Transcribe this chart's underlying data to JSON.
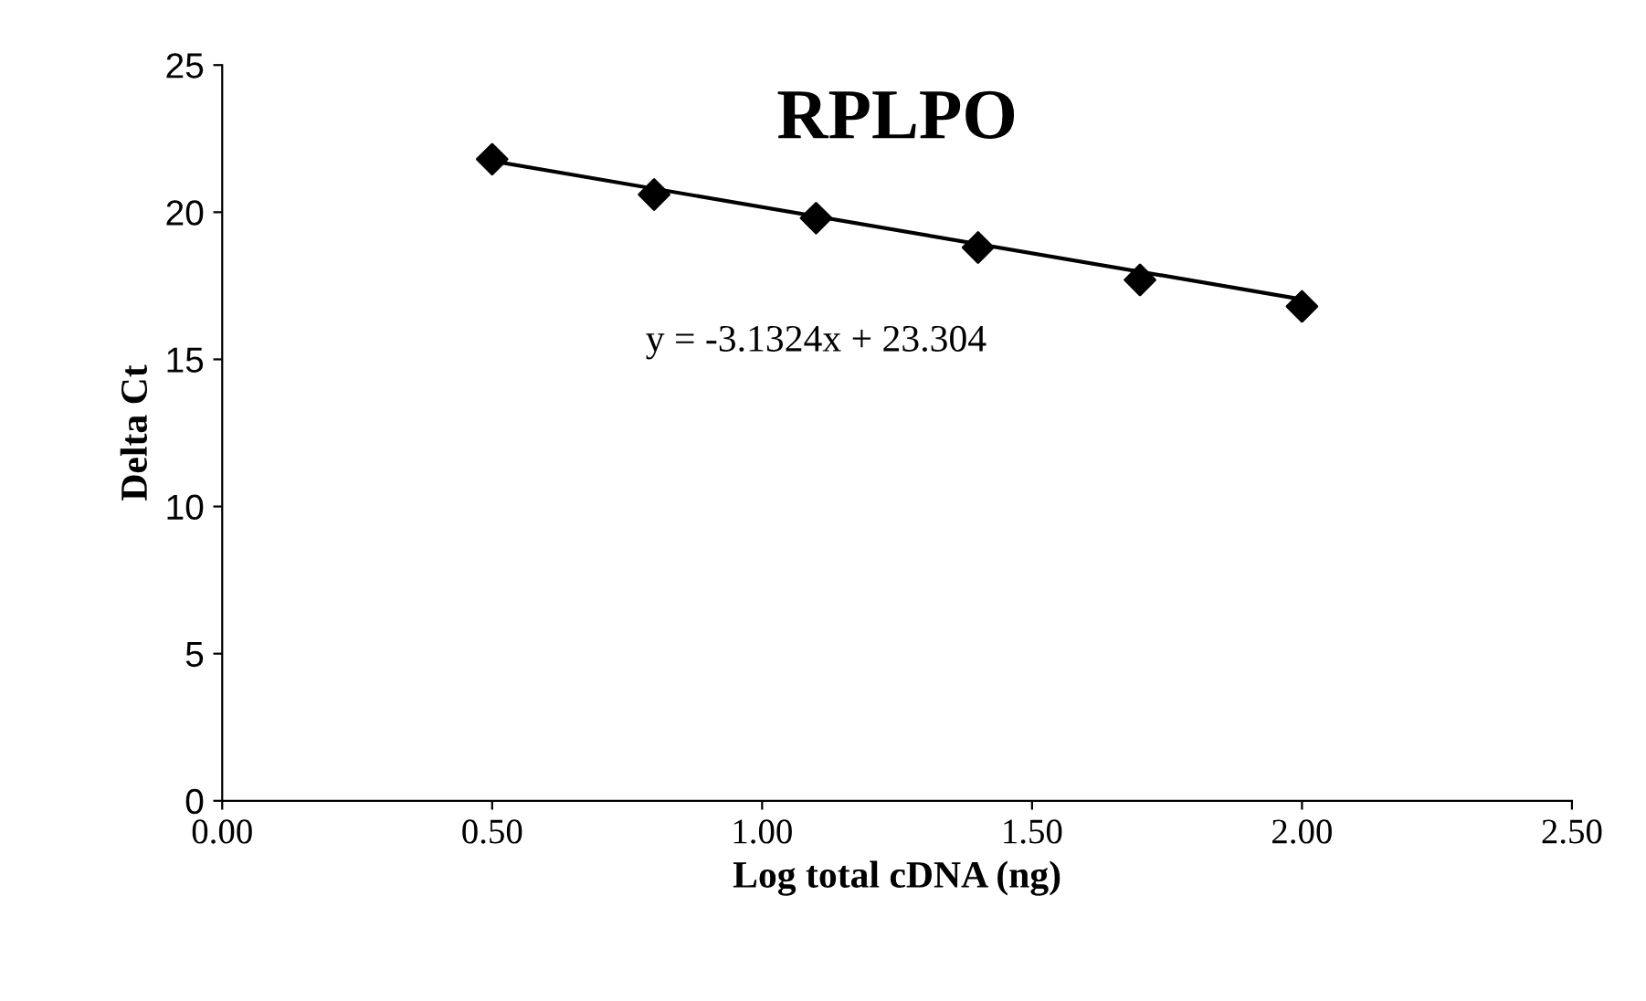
{
  "chart_data": {
    "type": "scatter",
    "title": "RPLPO",
    "xlabel": "Log total cDNA (ng)",
    "ylabel": "Delta Ct",
    "x": [
      0.5,
      0.8,
      1.1,
      1.4,
      1.7,
      2.0
    ],
    "series": [
      {
        "color": "#000000",
        "marker": "diamond",
        "values": [
          21.8,
          20.6,
          19.8,
          18.8,
          17.7,
          16.8
        ]
      },
      {
        "type": "line",
        "color": "#000000",
        "x": [
          0.5,
          2.0
        ],
        "values": [
          21.74,
          17.04
        ],
        "line_style": "solid"
      }
    ],
    "annotations": [
      "y = -3.1324x + 23.304"
    ],
    "xlim": [
      0,
      2.5
    ],
    "ylim": [
      0,
      25
    ],
    "xticks": [
      {
        "value": 0,
        "label": "0.00"
      },
      {
        "value": 0.5,
        "label": "0.50"
      },
      {
        "value": 1,
        "label": "1.00"
      },
      {
        "value": 1.5,
        "label": "1.50"
      },
      {
        "value": 2,
        "label": "2.00"
      },
      {
        "value": 2.5,
        "label": "2.50"
      }
    ],
    "yticks": [
      0,
      5,
      10,
      15,
      20,
      25
    ],
    "grid": false
  }
}
